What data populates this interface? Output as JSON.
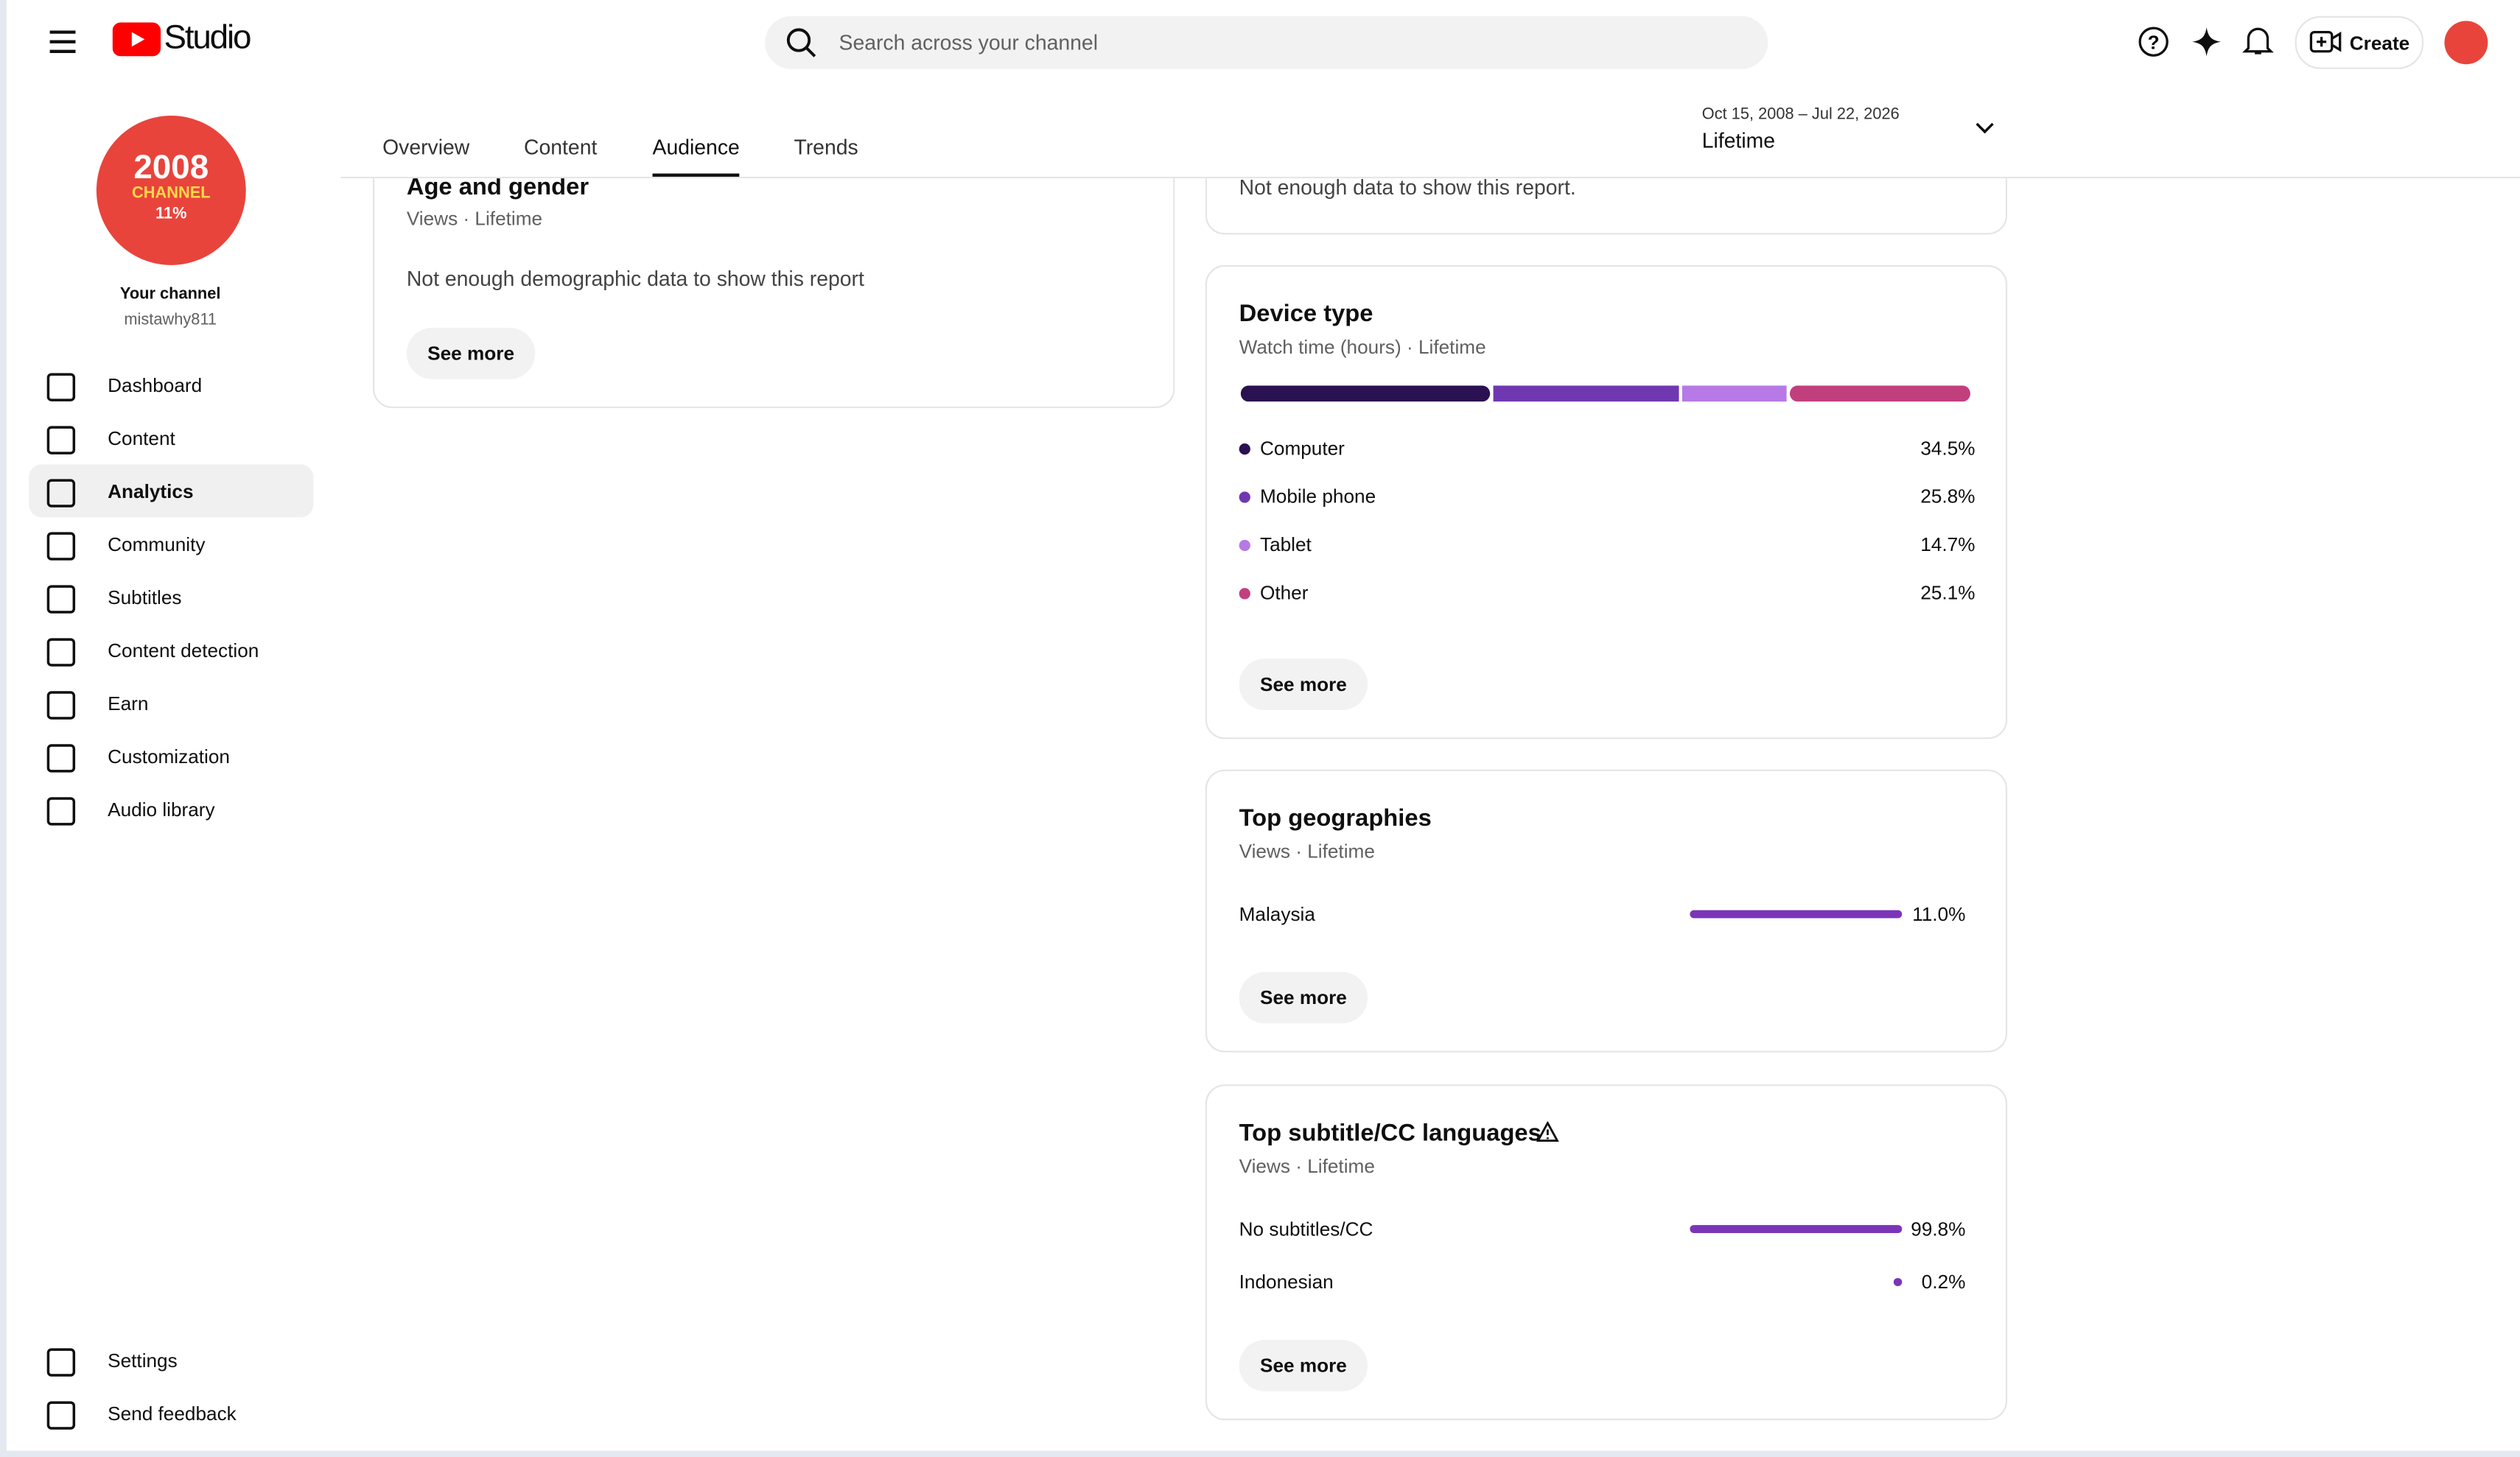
{
  "header": {
    "logo": "Studio",
    "search_placeholder": "Search across your channel",
    "create": "Create"
  },
  "channel": {
    "avatar_lines": [
      "2008",
      "CHANNEL",
      "11%"
    ],
    "name": "Your channel",
    "handle": "mistawhy811"
  },
  "nav": [
    "Dashboard",
    "Content",
    "Analytics",
    "Community",
    "Subtitles",
    "Content detection",
    "Earn",
    "Customization",
    "Audio library"
  ],
  "nav_active": 2,
  "nav_bottom": [
    "Settings",
    "Send feedback"
  ],
  "tabs": [
    "Overview",
    "Content",
    "Audience",
    "Trends"
  ],
  "active_tab": 2,
  "date_range": {
    "range": "Oct 15, 2008 – Jul 22, 2026",
    "label": "Lifetime"
  },
  "age_gender": {
    "title": "Age and gender",
    "subtitle": "Views · Lifetime",
    "message": "Not enough demographic data to show this report",
    "button": "See more"
  },
  "previous_card": {
    "message": "Not enough data to show this report."
  },
  "device_type": {
    "title": "Device type",
    "subtitle": "Watch time (hours) · Lifetime",
    "button": "See more",
    "items": [
      {
        "name": "Computer",
        "value": 34.5,
        "label": "34.5%",
        "color": "#2a1152"
      },
      {
        "name": "Mobile phone",
        "value": 25.8,
        "label": "25.8%",
        "color": "#7038b0"
      },
      {
        "name": "Tablet",
        "value": 14.7,
        "label": "14.7%",
        "color": "#b679e6"
      },
      {
        "name": "Other",
        "value": 25.1,
        "label": "25.1%",
        "color": "#c23f7e"
      }
    ]
  },
  "top_geographies": {
    "title": "Top geographies",
    "subtitle": "Views · Lifetime",
    "button": "See more",
    "color": "#7a35b8",
    "items": [
      {
        "name": "Malaysia",
        "value": 11.0,
        "label": "11.0%"
      }
    ]
  },
  "top_subtitles": {
    "title": "Top subtitle/CC languages",
    "subtitle": "Views · Lifetime",
    "button": "See more",
    "color": "#7a35b8",
    "items": [
      {
        "name": "No subtitles/CC",
        "value": 99.8,
        "label": "99.8%"
      },
      {
        "name": "Indonesian",
        "value": 0.2,
        "label": "0.2%"
      }
    ]
  }
}
